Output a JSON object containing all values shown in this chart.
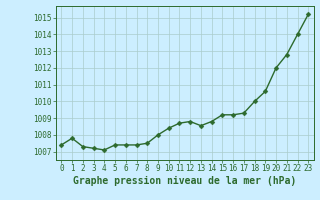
{
  "x": [
    0,
    1,
    2,
    3,
    4,
    5,
    6,
    7,
    8,
    9,
    10,
    11,
    12,
    13,
    14,
    15,
    16,
    17,
    18,
    19,
    20,
    21,
    22,
    23
  ],
  "y": [
    1007.4,
    1007.8,
    1007.3,
    1007.2,
    1007.1,
    1007.4,
    1007.4,
    1007.4,
    1007.5,
    1008.0,
    1008.4,
    1008.7,
    1008.8,
    1008.55,
    1008.8,
    1009.2,
    1009.2,
    1009.3,
    1010.0,
    1010.6,
    1012.0,
    1012.8,
    1014.0,
    1015.2
  ],
  "line_color": "#2d6a2d",
  "marker_color": "#2d6a2d",
  "bg_color": "#cceeff",
  "grid_color": "#aacccc",
  "xlabel": "Graphe pression niveau de la mer (hPa)",
  "xlabel_color": "#2d6a2d",
  "ylabel_ticks": [
    1007,
    1008,
    1009,
    1010,
    1011,
    1012,
    1013,
    1014,
    1015
  ],
  "ylim": [
    1006.5,
    1015.7
  ],
  "xlim": [
    -0.5,
    23.5
  ],
  "tick_color": "#2d6a2d",
  "tick_fontsize": 5.5,
  "xlabel_fontsize": 7.0,
  "line_width": 1.0,
  "marker_size": 2.5
}
